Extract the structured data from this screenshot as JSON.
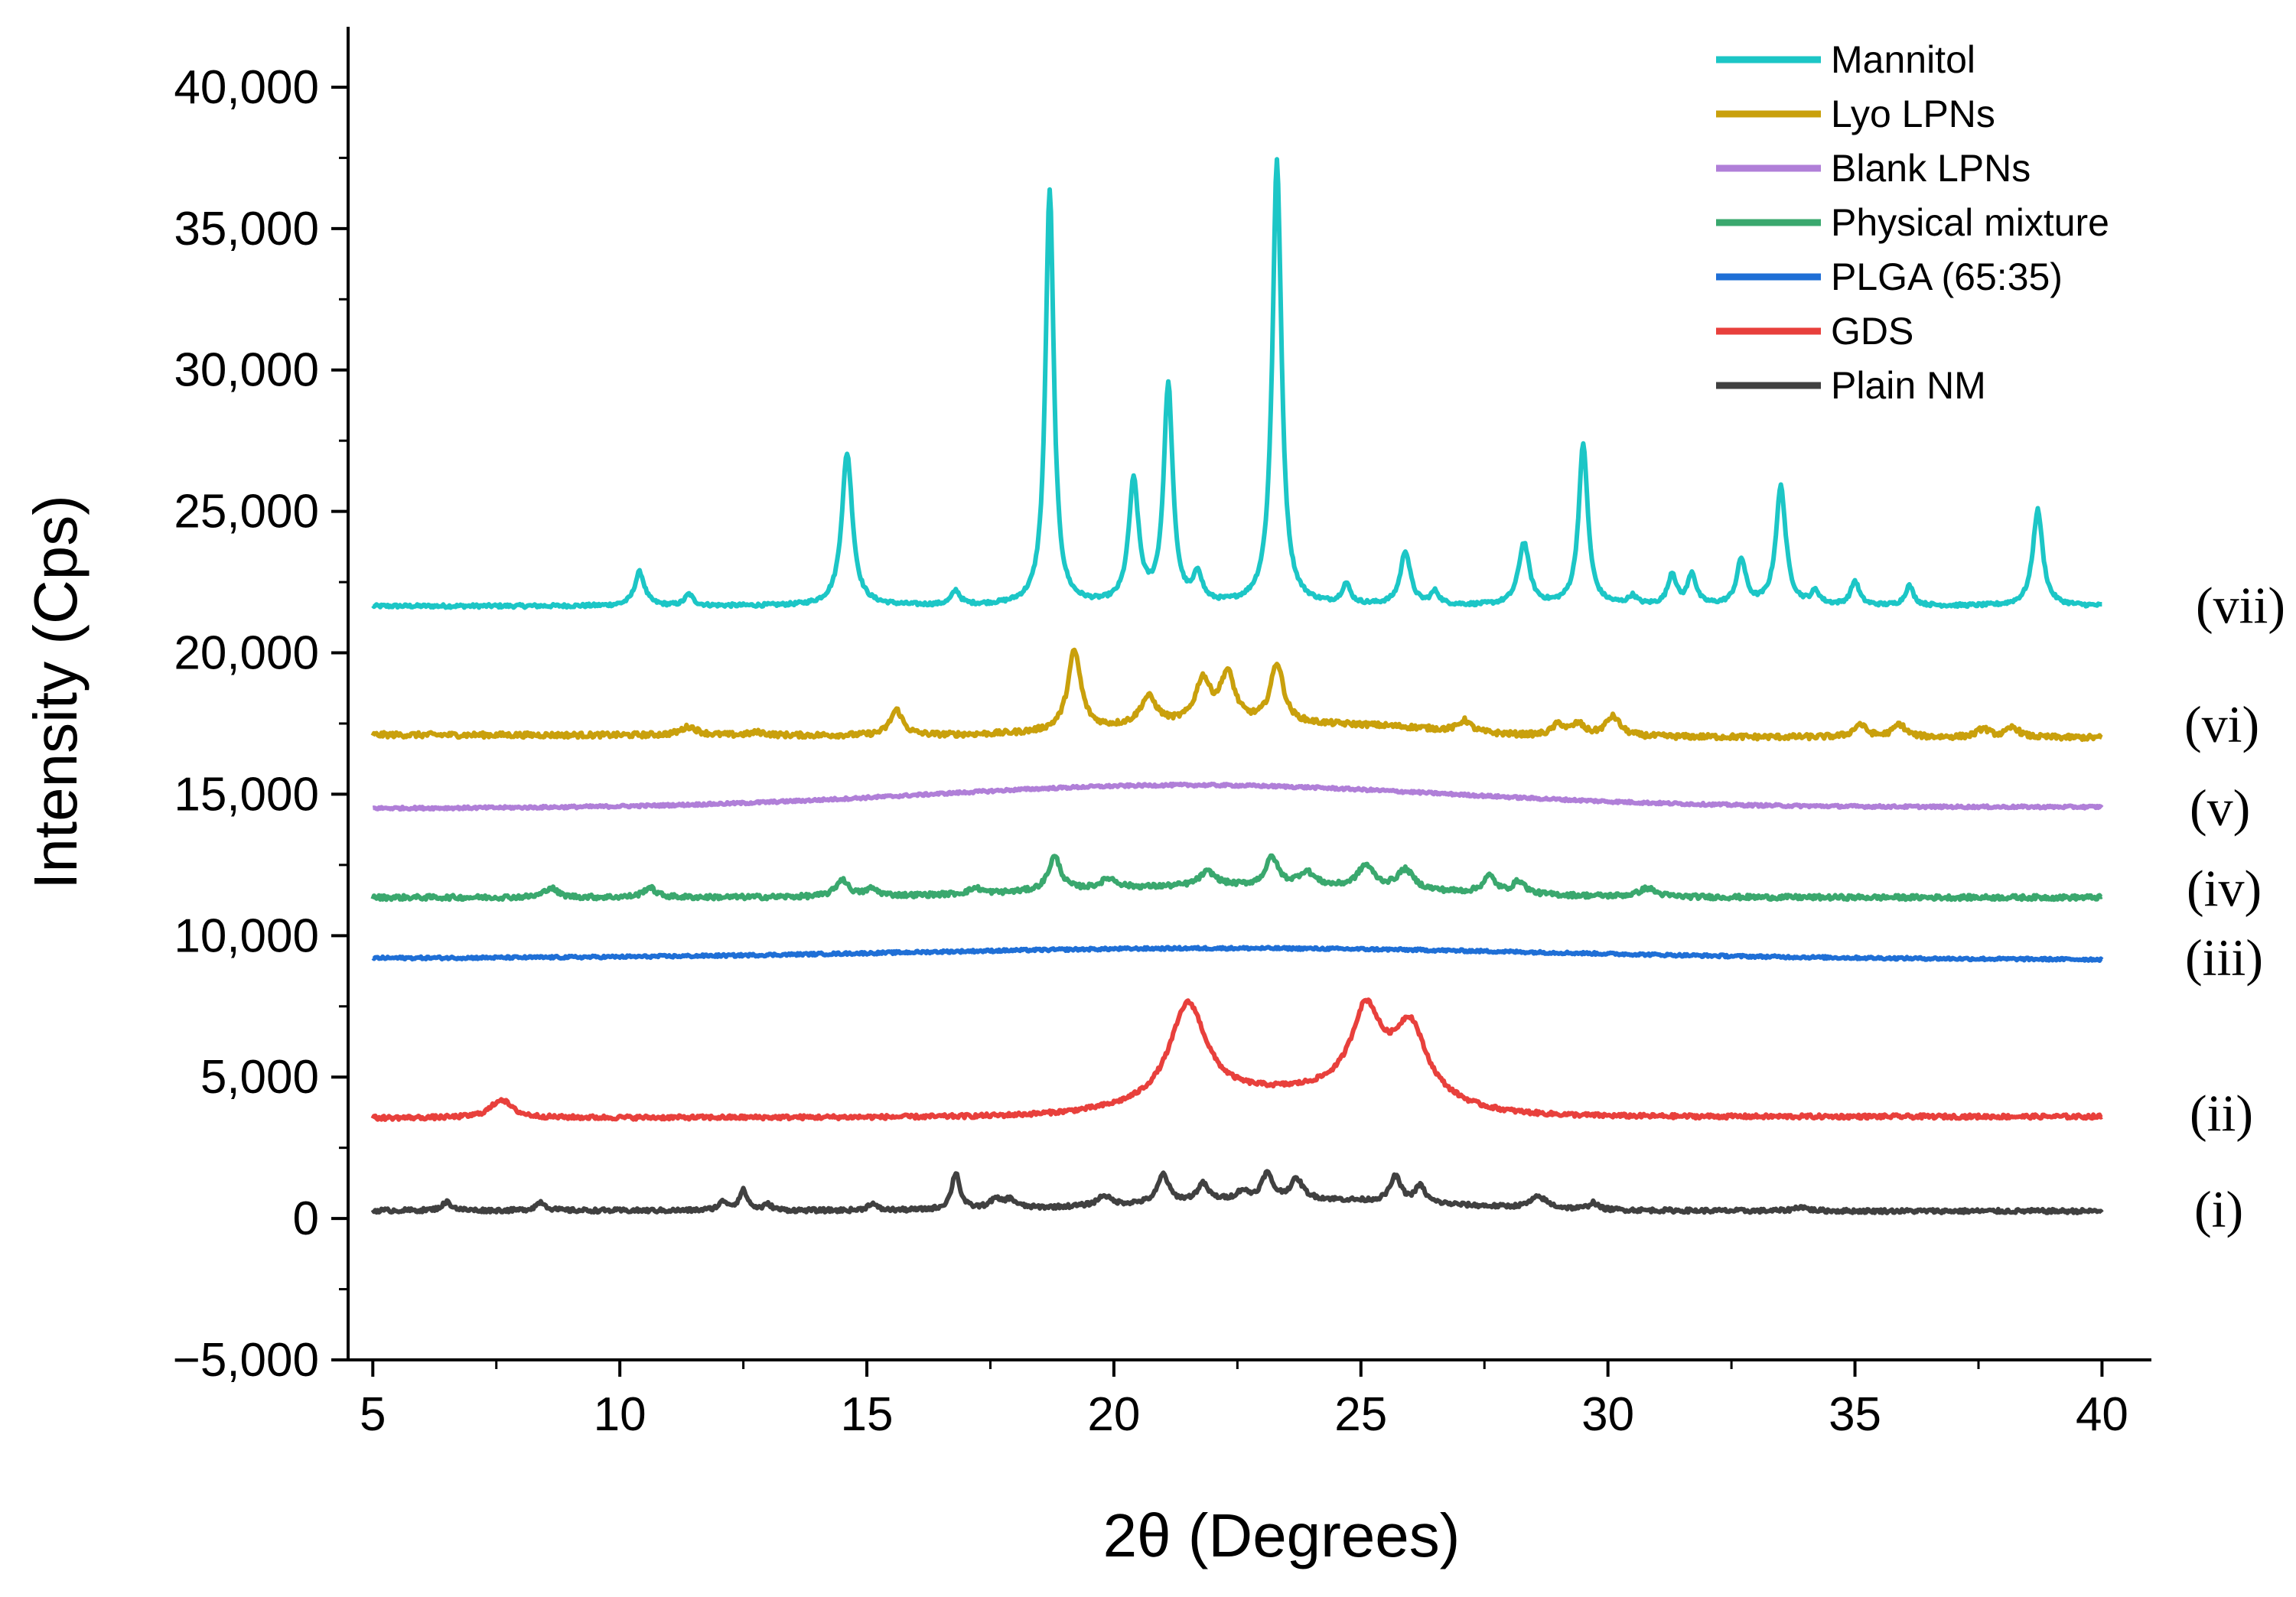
{
  "chart_data": {
    "type": "line",
    "title": "",
    "xlabel": "2θ (Degrees)",
    "ylabel": "Intensity (Cps)",
    "xlim": [
      4.5,
      41.0
    ],
    "ylim": [
      -5000,
      42000
    ],
    "x_ticks": [
      5,
      10,
      15,
      20,
      25,
      30,
      35,
      40
    ],
    "x_tick_labels": [
      "5",
      "10",
      "15",
      "20",
      "25",
      "30",
      "35",
      "40"
    ],
    "y_ticks": [
      -5000,
      0,
      5000,
      10000,
      15000,
      20000,
      25000,
      30000,
      35000,
      40000
    ],
    "y_tick_labels": [
      "−5,000",
      "0",
      "5,000",
      "10,000",
      "15,000",
      "20,000",
      "25,000",
      "30,000",
      "35,000",
      "40,000"
    ],
    "legend_position": "top-right",
    "series": [
      {
        "name": "Mannitol",
        "tag": "(vii)",
        "color": "#1cc6c6",
        "baseline": 21650,
        "baseline_end": 21650,
        "noise": 60,
        "peaks": [
          [
            10.4,
            1200,
            0.12
          ],
          [
            11.4,
            400,
            0.1
          ],
          [
            14.6,
            5400,
            0.13
          ],
          [
            16.8,
            500,
            0.1
          ],
          [
            18.7,
            14700,
            0.1
          ],
          [
            20.4,
            4300,
            0.12
          ],
          [
            21.1,
            7700,
            0.11
          ],
          [
            21.7,
            1000,
            0.1
          ],
          [
            23.3,
            15700,
            0.11
          ],
          [
            24.7,
            700,
            0.1
          ],
          [
            25.9,
            1900,
            0.12
          ],
          [
            26.5,
            450,
            0.1
          ],
          [
            28.3,
            2200,
            0.13
          ],
          [
            29.5,
            5700,
            0.11
          ],
          [
            30.5,
            300,
            0.1
          ],
          [
            31.3,
            1100,
            0.1
          ],
          [
            31.7,
            1100,
            0.1
          ],
          [
            32.7,
            1600,
            0.11
          ],
          [
            33.5,
            4200,
            0.12
          ],
          [
            34.2,
            450,
            0.1
          ],
          [
            35.0,
            850,
            0.1
          ],
          [
            36.1,
            700,
            0.1
          ],
          [
            38.7,
            3400,
            0.12
          ]
        ],
        "humps": []
      },
      {
        "name": "Lyo LPNs",
        "tag": "(vi)",
        "color": "#c9a00c",
        "baseline": 17100,
        "baseline_end": 17000,
        "noise": 90,
        "peaks": [
          [
            11.4,
            300,
            0.2
          ],
          [
            12.8,
            100,
            0.2
          ],
          [
            15.6,
            900,
            0.15
          ],
          [
            19.2,
            2800,
            0.16
          ],
          [
            20.7,
            1000,
            0.2
          ],
          [
            21.8,
            1500,
            0.18
          ],
          [
            22.3,
            1700,
            0.18
          ],
          [
            23.3,
            2100,
            0.16
          ],
          [
            27.1,
            400,
            0.15
          ],
          [
            29.0,
            400,
            0.15
          ],
          [
            29.4,
            400,
            0.15
          ],
          [
            30.1,
            700,
            0.18
          ],
          [
            35.1,
            450,
            0.15
          ],
          [
            35.9,
            450,
            0.15
          ],
          [
            37.6,
            300,
            0.15
          ],
          [
            38.2,
            350,
            0.15
          ]
        ],
        "humps": [
          [
            22.0,
            400,
            2.2
          ],
          [
            25.5,
            250,
            1.5
          ]
        ]
      },
      {
        "name": "Blank LPNs",
        "tag": "(v)",
        "color": "#b07fd8",
        "baseline": 14500,
        "baseline_end": 14550,
        "noise": 45,
        "peaks": [],
        "humps": [
          [
            21.5,
            800,
            5.2
          ]
        ]
      },
      {
        "name": "Physical mixture",
        "tag": "(iv)",
        "color": "#3aa86e",
        "baseline": 11350,
        "baseline_end": 11350,
        "noise": 80,
        "peaks": [
          [
            8.6,
            350,
            0.15
          ],
          [
            10.6,
            350,
            0.15
          ],
          [
            14.5,
            600,
            0.15
          ],
          [
            15.1,
            250,
            0.15
          ],
          [
            17.2,
            200,
            0.15
          ],
          [
            18.8,
            1200,
            0.15
          ],
          [
            19.9,
            350,
            0.2
          ],
          [
            21.9,
            500,
            0.2
          ],
          [
            23.2,
            1000,
            0.15
          ],
          [
            23.9,
            500,
            0.2
          ],
          [
            25.1,
            800,
            0.2
          ],
          [
            25.9,
            700,
            0.2
          ],
          [
            27.6,
            600,
            0.15
          ],
          [
            28.2,
            450,
            0.15
          ],
          [
            30.8,
            300,
            0.2
          ]
        ],
        "humps": [
          [
            22.5,
            400,
            3.5
          ]
        ]
      },
      {
        "name": "PLGA (65:35)",
        "tag": "(iii)",
        "color": "#1f6fd6",
        "baseline": 9200,
        "baseline_end": 9150,
        "noise": 45,
        "peaks": [],
        "humps": [
          [
            22.5,
            380,
            6.5
          ]
        ]
      },
      {
        "name": "GDS",
        "tag": "(ii)",
        "color": "#e8403c",
        "baseline": 3550,
        "baseline_end": 3600,
        "noise": 70,
        "peaks": [
          [
            7.6,
            650,
            0.25
          ],
          [
            21.5,
            3500,
            0.45
          ],
          [
            25.1,
            2700,
            0.35
          ],
          [
            26.0,
            2300,
            0.38
          ]
        ],
        "humps": [
          [
            23.5,
            800,
            2.2
          ],
          [
            25.6,
            500,
            0.9
          ]
        ]
      },
      {
        "name": "Plain NM",
        "tag": "(i)",
        "color": "#404040",
        "baseline": 280,
        "baseline_end": 260,
        "noise": 70,
        "peaks": [
          [
            6.5,
            300,
            0.12
          ],
          [
            8.4,
            300,
            0.12
          ],
          [
            12.1,
            300,
            0.12
          ],
          [
            12.5,
            700,
            0.1
          ],
          [
            13.0,
            200,
            0.1
          ],
          [
            15.1,
            250,
            0.1
          ],
          [
            16.8,
            1300,
            0.1
          ],
          [
            17.6,
            300,
            0.15
          ],
          [
            17.9,
            300,
            0.15
          ],
          [
            19.8,
            350,
            0.15
          ],
          [
            21.0,
            1000,
            0.13
          ],
          [
            21.8,
            600,
            0.13
          ],
          [
            22.6,
            300,
            0.13
          ],
          [
            23.1,
            900,
            0.13
          ],
          [
            23.7,
            700,
            0.15
          ],
          [
            25.7,
            900,
            0.13
          ],
          [
            26.2,
            600,
            0.12
          ],
          [
            28.6,
            400,
            0.2
          ],
          [
            29.7,
            250,
            0.1
          ],
          [
            33.9,
            150,
            0.15
          ]
        ],
        "humps": [
          [
            23.5,
            400,
            3.0
          ]
        ]
      }
    ]
  }
}
